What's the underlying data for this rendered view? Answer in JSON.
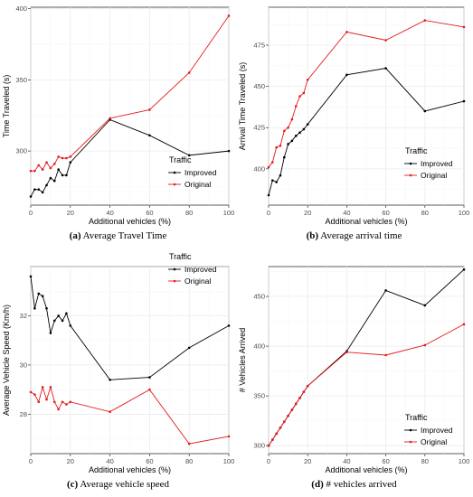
{
  "chart_data": [
    {
      "type": "line",
      "caption_letter": "(a)",
      "caption_text": "Average Travel Time",
      "xlabel": "Additional vehicles (%)",
      "ylabel": "Time Traveled (s)",
      "xlim": [
        0,
        100
      ],
      "ylim": [
        262,
        401
      ],
      "xticks": [
        0,
        20,
        40,
        60,
        80,
        100
      ],
      "yticks": [
        300,
        350,
        400
      ],
      "legend_title": "Traffic",
      "legend_position": "bottom-right",
      "grid": true,
      "series": [
        {
          "name": "Improved",
          "color": "#000000",
          "x": [
            0,
            2,
            4,
            6,
            8,
            10,
            12,
            14,
            16,
            18,
            20,
            40,
            60,
            80,
            100
          ],
          "y": [
            268,
            273,
            273,
            271,
            276,
            281,
            279,
            287,
            283,
            283,
            292,
            322,
            311,
            297,
            300
          ]
        },
        {
          "name": "Original",
          "color": "#e41a1c",
          "x": [
            0,
            2,
            4,
            6,
            8,
            10,
            12,
            14,
            16,
            18,
            20,
            40,
            60,
            80,
            100
          ],
          "y": [
            286,
            286,
            290,
            287,
            292,
            288,
            291,
            296,
            295,
            295,
            296,
            323,
            329,
            355,
            395
          ]
        }
      ]
    },
    {
      "type": "line",
      "caption_letter": "(b)",
      "caption_text": "Average arrival time",
      "xlabel": "Additional vehicles (%)",
      "ylabel": "Arrival Time Traveled (s)",
      "xlim": [
        0,
        100
      ],
      "ylim": [
        378,
        498
      ],
      "xticks": [
        0,
        20,
        40,
        60,
        80,
        100
      ],
      "yticks": [
        400,
        425,
        450,
        475
      ],
      "legend_title": "Traffic",
      "legend_position": "bottom-right",
      "grid": true,
      "series": [
        {
          "name": "Improved",
          "color": "#000000",
          "x": [
            0,
            2,
            4,
            6,
            8,
            10,
            12,
            14,
            16,
            18,
            20,
            40,
            60,
            80,
            100
          ],
          "y": [
            384,
            393,
            392,
            396,
            407,
            415,
            417,
            420,
            422,
            424,
            427,
            457,
            461,
            435,
            441
          ]
        },
        {
          "name": "Original",
          "color": "#e41a1c",
          "x": [
            0,
            2,
            4,
            6,
            8,
            10,
            12,
            14,
            16,
            18,
            20,
            40,
            60,
            80,
            100
          ],
          "y": [
            401,
            404,
            413,
            414,
            423,
            425,
            430,
            438,
            444,
            446,
            454,
            483,
            478,
            490,
            486
          ]
        }
      ]
    },
    {
      "type": "line",
      "caption_letter": "(c)",
      "caption_text": "Average vehicle speed",
      "xlabel": "Additional vehicles (%)",
      "ylabel": "Average Vehicle Speed (Km/h)",
      "xlim": [
        0,
        100
      ],
      "ylim": [
        26.4,
        34.0
      ],
      "xticks": [
        0,
        20,
        40,
        60,
        80,
        100
      ],
      "yticks": [
        28,
        30,
        32
      ],
      "legend_title": "Traffic",
      "legend_position": "top-right",
      "grid": true,
      "series": [
        {
          "name": "Improved",
          "color": "#000000",
          "x": [
            0,
            2,
            4,
            6,
            8,
            10,
            12,
            14,
            16,
            18,
            20,
            40,
            60,
            80,
            100
          ],
          "y": [
            33.6,
            32.3,
            32.9,
            32.8,
            32.3,
            31.3,
            31.8,
            32.0,
            31.8,
            32.1,
            31.6,
            29.4,
            29.5,
            30.7,
            31.6
          ]
        },
        {
          "name": "Original",
          "color": "#e41a1c",
          "x": [
            0,
            2,
            4,
            6,
            8,
            10,
            12,
            14,
            16,
            18,
            20,
            40,
            60,
            80,
            100
          ],
          "y": [
            28.9,
            28.8,
            28.5,
            29.1,
            28.6,
            29.1,
            28.5,
            28.2,
            28.5,
            28.4,
            28.5,
            28.1,
            29.0,
            26.8,
            27.1
          ]
        }
      ]
    },
    {
      "type": "line",
      "caption_letter": "(d)",
      "caption_text": "# vehicles arrived",
      "xlabel": "Additional vehicles (%)",
      "ylabel": "# Vehicles Arrived",
      "xlim": [
        0,
        100
      ],
      "ylim": [
        292,
        480
      ],
      "xticks": [
        0,
        20,
        40,
        60,
        80,
        100
      ],
      "yticks": [
        300,
        350,
        400,
        450
      ],
      "legend_title": "Traffic",
      "legend_position": "bottom-right",
      "grid": true,
      "series": [
        {
          "name": "Improved",
          "color": "#000000",
          "x": [
            0,
            2,
            4,
            6,
            8,
            10,
            12,
            14,
            16,
            18,
            20,
            40,
            60,
            80,
            100
          ],
          "y": [
            300,
            306,
            312,
            318,
            324,
            330,
            336,
            342,
            348,
            354,
            360,
            395,
            456,
            441,
            477
          ]
        },
        {
          "name": "Original",
          "color": "#e41a1c",
          "x": [
            0,
            2,
            4,
            6,
            8,
            10,
            12,
            14,
            16,
            18,
            20,
            40,
            60,
            80,
            100
          ],
          "y": [
            300,
            306,
            312,
            318,
            324,
            330,
            336,
            342,
            348,
            354,
            360,
            394,
            391,
            401,
            422
          ]
        }
      ]
    }
  ]
}
